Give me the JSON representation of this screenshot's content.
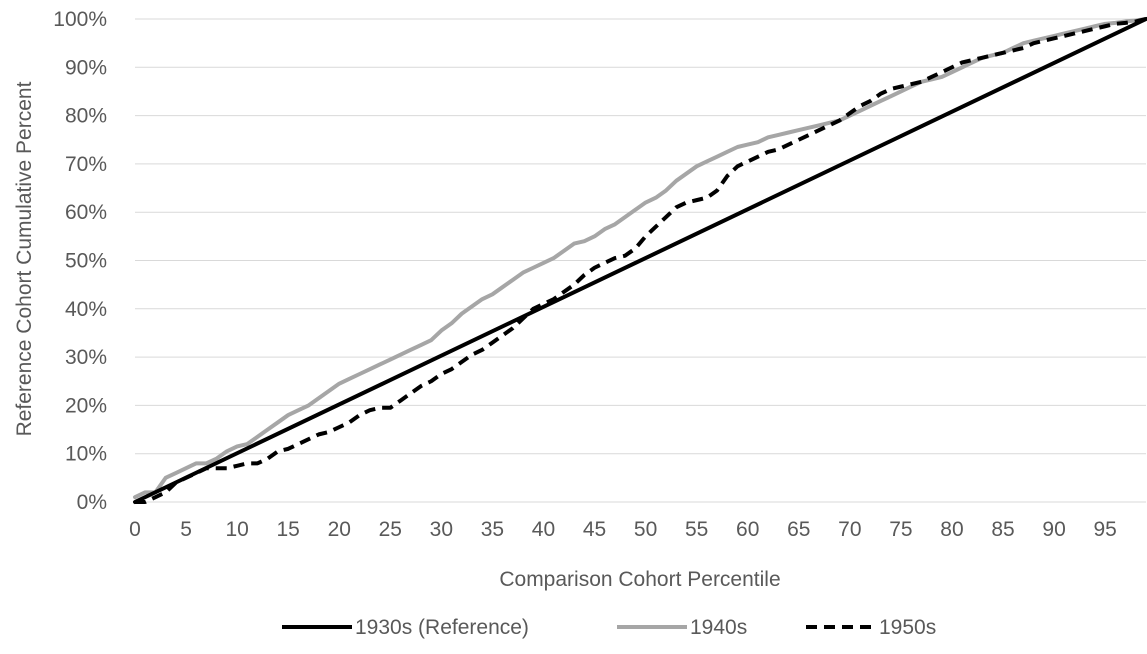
{
  "chart_data": {
    "type": "line",
    "title": "",
    "xlabel": "Comparison Cohort Percentile",
    "ylabel": "Reference Cohort Cumulative Percent",
    "xlim": [
      0,
      99
    ],
    "ylim": [
      0,
      100
    ],
    "x_ticks": [
      0,
      5,
      10,
      15,
      20,
      25,
      30,
      35,
      40,
      45,
      50,
      55,
      60,
      65,
      70,
      75,
      80,
      85,
      90,
      95
    ],
    "x_tick_labels": [
      "0",
      "5",
      "10",
      "15",
      "20",
      "25",
      "30",
      "35",
      "40",
      "45",
      "50",
      "55",
      "60",
      "65",
      "70",
      "75",
      "80",
      "85",
      "90",
      "95"
    ],
    "y_ticks": [
      0,
      10,
      20,
      30,
      40,
      50,
      60,
      70,
      80,
      90,
      100
    ],
    "y_tick_labels": [
      "0%",
      "10%",
      "20%",
      "30%",
      "40%",
      "50%",
      "60%",
      "70%",
      "80%",
      "90%",
      "100%"
    ],
    "grid": "horizontal",
    "legend_position": "bottom",
    "series": [
      {
        "name": "1930s (Reference)",
        "color": "#000000",
        "style": "solid",
        "x": [
          0,
          99
        ],
        "y": [
          0,
          100
        ]
      },
      {
        "name": "1940s",
        "color": "#a6a6a6",
        "style": "solid",
        "x": [
          0,
          1,
          2,
          3,
          4,
          5,
          6,
          7,
          8,
          9,
          10,
          11,
          12,
          13,
          14,
          15,
          16,
          17,
          18,
          19,
          20,
          21,
          22,
          23,
          24,
          25,
          26,
          27,
          28,
          29,
          30,
          31,
          32,
          33,
          34,
          35,
          36,
          37,
          38,
          39,
          40,
          41,
          42,
          43,
          44,
          45,
          46,
          47,
          48,
          49,
          50,
          51,
          52,
          53,
          54,
          55,
          56,
          57,
          58,
          59,
          60,
          61,
          62,
          63,
          64,
          65,
          66,
          67,
          68,
          69,
          70,
          71,
          72,
          73,
          74,
          75,
          76,
          77,
          78,
          79,
          80,
          81,
          82,
          83,
          84,
          85,
          86,
          87,
          88,
          89,
          90,
          91,
          92,
          93,
          94,
          95,
          96,
          97,
          98,
          99
        ],
        "y": [
          1,
          2,
          2,
          5,
          6,
          7,
          8,
          8,
          9,
          10.5,
          11.5,
          12,
          13.5,
          15,
          16.5,
          18,
          19,
          20,
          21.5,
          23,
          24.5,
          25.5,
          26.5,
          27.5,
          28.5,
          29.5,
          30.5,
          31.5,
          32.5,
          33.5,
          35.5,
          37,
          39,
          40.5,
          42,
          43,
          44.5,
          46,
          47.5,
          48.5,
          49.5,
          50.5,
          52,
          53.5,
          54,
          55,
          56.5,
          57.5,
          59,
          60.5,
          62,
          63,
          64.5,
          66.5,
          68,
          69.5,
          70.5,
          71.5,
          72.5,
          73.5,
          74,
          74.5,
          75.5,
          76,
          76.5,
          77,
          77.5,
          78,
          78.5,
          79,
          80,
          81,
          82,
          83,
          84,
          85,
          86,
          87,
          87.5,
          88,
          89,
          90,
          91,
          92,
          92.5,
          93,
          94,
          95,
          95.5,
          96,
          96.5,
          97,
          97.5,
          98,
          98.5,
          99,
          99.2,
          99.5,
          99.7,
          100
        ]
      },
      {
        "name": "1950s",
        "color": "#000000",
        "style": "dashed",
        "x": [
          0,
          1,
          2,
          3,
          4,
          5,
          6,
          7,
          8,
          9,
          10,
          11,
          12,
          13,
          14,
          15,
          16,
          17,
          18,
          19,
          20,
          21,
          22,
          23,
          24,
          25,
          26,
          27,
          28,
          29,
          30,
          31,
          32,
          33,
          34,
          35,
          36,
          37,
          38,
          39,
          40,
          41,
          42,
          43,
          44,
          45,
          46,
          47,
          48,
          49,
          50,
          51,
          52,
          53,
          54,
          55,
          56,
          57,
          58,
          59,
          60,
          61,
          62,
          63,
          64,
          65,
          66,
          67,
          68,
          69,
          70,
          71,
          72,
          73,
          74,
          75,
          76,
          77,
          78,
          79,
          80,
          81,
          82,
          83,
          84,
          85,
          86,
          87,
          88,
          89,
          90,
          91,
          92,
          93,
          94,
          95,
          96,
          97,
          98,
          99
        ],
        "y": [
          0,
          0,
          1,
          2,
          4,
          5,
          6,
          7,
          7,
          7,
          7.5,
          8,
          8,
          9,
          10.5,
          11,
          12,
          13,
          14,
          14.5,
          15.5,
          16.5,
          18,
          19,
          19.5,
          19.5,
          21,
          22.5,
          24,
          25,
          26.5,
          27.5,
          29,
          30.5,
          31.5,
          33,
          34.5,
          36,
          38,
          40,
          41,
          42,
          43.5,
          45,
          47,
          48.5,
          49.5,
          50.5,
          51,
          52.5,
          55,
          57,
          59,
          61,
          62,
          62.5,
          63,
          64.5,
          67.5,
          69.5,
          70.5,
          71.5,
          72.5,
          73,
          74,
          75,
          76,
          77,
          78,
          79,
          80.5,
          82,
          83,
          84.5,
          85.5,
          86,
          86.5,
          87,
          88,
          89,
          90,
          91,
          91.5,
          92,
          92.5,
          93,
          93.5,
          94,
          95,
          95.5,
          96,
          96.5,
          97,
          97.5,
          98,
          98.5,
          99,
          99.2,
          99.5,
          100
        ]
      }
    ]
  }
}
